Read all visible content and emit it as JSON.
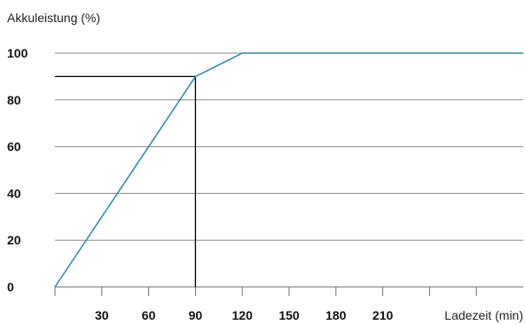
{
  "chart_data": {
    "type": "line",
    "ylabel": "Akkuleistung (%)",
    "xlabel": "Ladezeit (min)",
    "xlim": [
      0,
      300
    ],
    "ylim": [
      0,
      100
    ],
    "x_ticks": [
      30,
      60,
      90,
      120,
      150,
      180,
      210,
      240,
      270
    ],
    "x_tick_labels": [
      "30",
      "60",
      "90",
      "120",
      "150",
      "180",
      "210",
      "",
      ""
    ],
    "y_ticks": [
      0,
      20,
      40,
      60,
      80,
      100
    ],
    "y_tick_labels": [
      "0",
      "20",
      "40",
      "60",
      "80",
      "100"
    ],
    "grid": true,
    "series": [
      {
        "color": "#2a87b0",
        "x": [
          0,
          90,
          120,
          300
        ],
        "y": [
          0,
          90,
          100,
          100
        ]
      }
    ],
    "annotations": [
      {
        "type": "reference-point",
        "x": 90,
        "y": 90,
        "color": "#000000"
      }
    ]
  }
}
